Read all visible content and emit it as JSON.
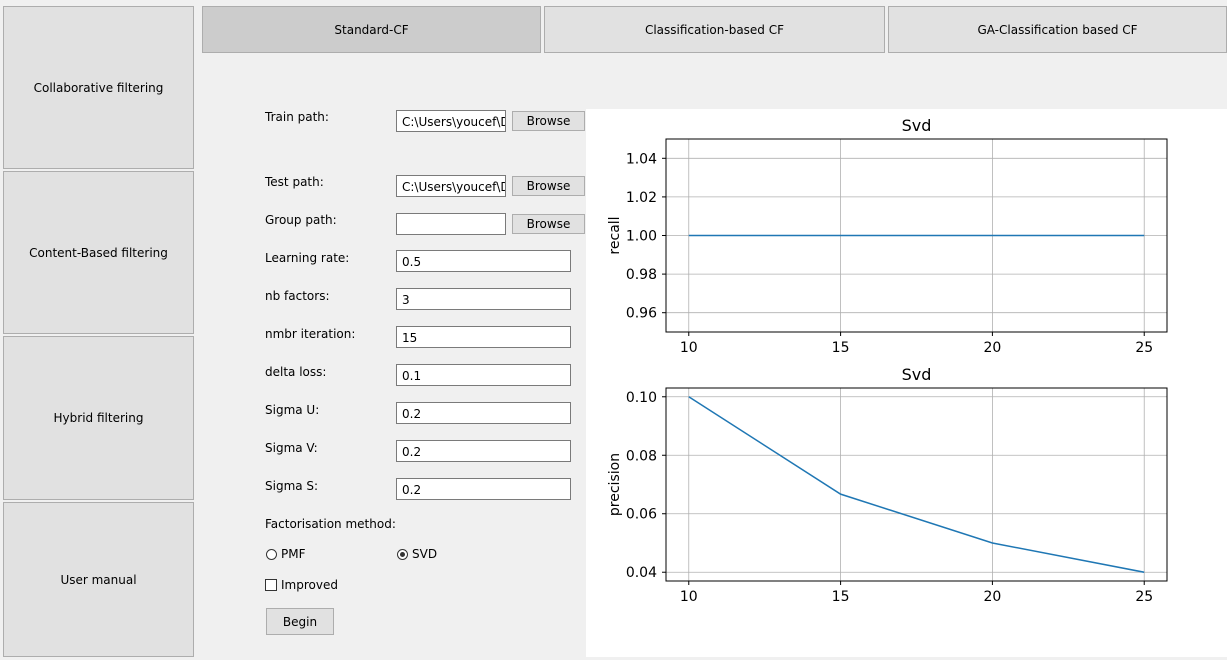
{
  "sidebar": {
    "items": [
      {
        "label": "Collaborative filtering",
        "active": true
      },
      {
        "label": "Content-Based filtering",
        "active": false
      },
      {
        "label": "Hybrid filtering",
        "active": false
      },
      {
        "label": "User manual",
        "active": false
      }
    ]
  },
  "tabs": [
    {
      "label": "Standard-CF",
      "active": true
    },
    {
      "label": "Classification-based CF",
      "active": false
    },
    {
      "label": "GA-Classification based CF",
      "active": false
    }
  ],
  "form": {
    "train_path_label": "Train path:",
    "train_path_value": "C:\\Users\\youcef\\De",
    "test_path_label": "Test path:",
    "test_path_value": "C:\\Users\\youcef\\De",
    "group_path_label": "Group path:",
    "group_path_value": "",
    "browse_label": "Browse",
    "learning_rate_label": "Learning rate:",
    "learning_rate_value": "0.5",
    "nb_factors_label": "nb factors:",
    "nb_factors_value": "3",
    "nmbr_iteration_label": "nmbr iteration:",
    "nmbr_iteration_value": "15",
    "delta_loss_label": "delta loss:",
    "delta_loss_value": "0.1",
    "sigma_u_label": "Sigma U:",
    "sigma_u_value": "0.2",
    "sigma_v_label": "Sigma V:",
    "sigma_v_value": "0.2",
    "sigma_s_label": "Sigma S:",
    "sigma_s_value": "0.2",
    "factorisation_label": "Factorisation method:",
    "pmf_label": "PMF",
    "svd_label": "SVD",
    "selected_method": "SVD",
    "improved_label": "Improved",
    "improved_checked": false,
    "begin_label": "Begin"
  },
  "chart_data": [
    {
      "type": "line",
      "title": "Svd",
      "xlabel": "",
      "ylabel": "recall",
      "x": [
        10,
        15,
        20,
        25
      ],
      "series": [
        {
          "values": [
            1.0,
            1.0,
            1.0,
            1.0
          ]
        }
      ],
      "xlim": [
        9.25,
        25.75
      ],
      "ylim": [
        0.95,
        1.05
      ],
      "xticks": [
        10,
        15,
        20,
        25
      ],
      "yticks": [
        0.96,
        0.98,
        1.0,
        1.02,
        1.04
      ],
      "ytick_labels": [
        "0.96",
        "0.98",
        "1.00",
        "1.02",
        "1.04"
      ],
      "grid": true,
      "line_color": "#1f77b4"
    },
    {
      "type": "line",
      "title": "Svd",
      "xlabel": "",
      "ylabel": "precision",
      "x": [
        10,
        15,
        20,
        25
      ],
      "series": [
        {
          "values": [
            0.1,
            0.0667,
            0.05,
            0.04
          ]
        }
      ],
      "xlim": [
        9.25,
        25.75
      ],
      "ylim": [
        0.037,
        0.103
      ],
      "xticks": [
        10,
        15,
        20,
        25
      ],
      "yticks": [
        0.04,
        0.06,
        0.08,
        0.1
      ],
      "ytick_labels": [
        "0.04",
        "0.06",
        "0.08",
        "0.10"
      ],
      "grid": true,
      "line_color": "#1f77b4"
    }
  ]
}
